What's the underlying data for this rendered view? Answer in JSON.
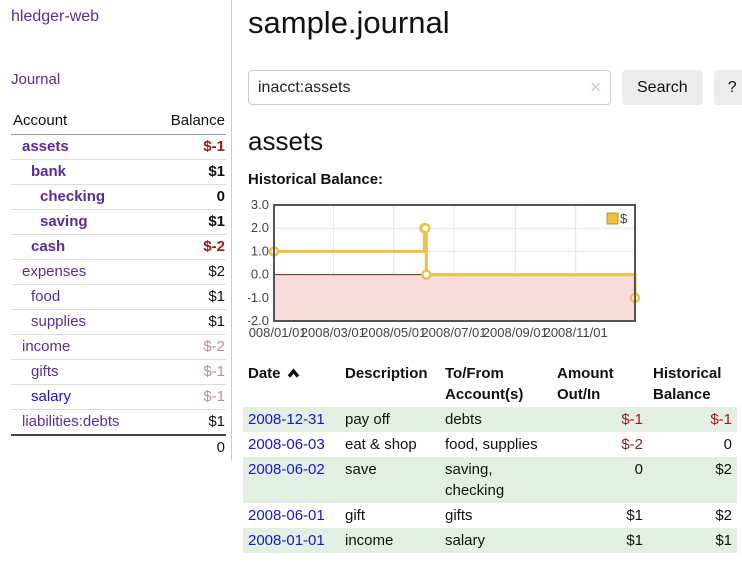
{
  "app": {
    "brand": "hledger-web",
    "nav_journal": "Journal"
  },
  "theme": {
    "link_visited": "#5a2ca0",
    "link_unvisited": "#1515dd",
    "negative": "#a01818",
    "negative_faded": "#bc8f8f",
    "row_green": "#e2efe2",
    "button_bg": "#ececec"
  },
  "sidebar": {
    "columns": {
      "account": "Account",
      "balance": "Balance"
    },
    "accounts": [
      {
        "name": "assets",
        "depth": 0,
        "balance": "$-1",
        "bold": true,
        "balance_tone": "negative"
      },
      {
        "name": "bank",
        "depth": 1,
        "balance": "$1",
        "bold": true,
        "balance_tone": "normal"
      },
      {
        "name": "checking",
        "depth": 2,
        "balance": "0",
        "bold": true,
        "balance_tone": "normal"
      },
      {
        "name": "saving",
        "depth": 2,
        "balance": "$1",
        "bold": true,
        "balance_tone": "normal"
      },
      {
        "name": "cash",
        "depth": 1,
        "balance": "$-2",
        "bold": true,
        "balance_tone": "negative"
      },
      {
        "name": "expenses",
        "depth": 0,
        "balance": "$2",
        "bold": false,
        "balance_tone": "normal"
      },
      {
        "name": "food",
        "depth": 1,
        "balance": "$1",
        "bold": false,
        "balance_tone": "normal"
      },
      {
        "name": "supplies",
        "depth": 1,
        "balance": "$1",
        "bold": false,
        "balance_tone": "normal"
      },
      {
        "name": "income",
        "depth": 0,
        "balance": "$-2",
        "bold": false,
        "balance_tone": "negative-faded"
      },
      {
        "name": "gifts",
        "depth": 1,
        "balance": "$-1",
        "bold": false,
        "balance_tone": "negative-faded"
      },
      {
        "name": "salary",
        "depth": 1,
        "balance": "$-1",
        "bold": false,
        "balance_tone": "negative-faded",
        "link_tone": "unvisited"
      },
      {
        "name": "liabilities:debts",
        "depth": 0,
        "balance": "$1",
        "bold": false,
        "balance_tone": "normal"
      }
    ],
    "total": "0"
  },
  "header": {
    "title": "sample.journal"
  },
  "search": {
    "value": "inacct:assets",
    "clear_label": "✕",
    "button": "Search",
    "help": "?"
  },
  "account_page": {
    "heading": "assets",
    "chart_label": "Historical Balance:"
  },
  "chart_data": {
    "type": "line",
    "title": "Historical Balance",
    "legend": {
      "position": "top-right",
      "entries": [
        "$"
      ]
    },
    "xlim": [
      "2008-01-01",
      "2008-12-31"
    ],
    "ylim": [
      -2,
      3
    ],
    "y_ticks": [
      -2,
      -1,
      0,
      1,
      2,
      3
    ],
    "x_ticks": [
      {
        "date": "2008-01-01",
        "label": "2008/01/01"
      },
      {
        "date": "2008-03-01",
        "label": "2008/03/01"
      },
      {
        "date": "2008-05-01",
        "label": "2008/05/01"
      },
      {
        "date": "2008-07-01",
        "label": "2008/07/01"
      },
      {
        "date": "2008-09-01",
        "label": "2008/09/01"
      },
      {
        "date": "2008-11-01",
        "label": "2008/11/01"
      }
    ],
    "series": [
      {
        "name": "$",
        "color": "#edc240",
        "step": true,
        "points": [
          {
            "date": "2008-01-01",
            "value": 1
          },
          {
            "date": "2008-06-01",
            "value": 2
          },
          {
            "date": "2008-06-02",
            "value": 2
          },
          {
            "date": "2008-06-03",
            "value": 0
          },
          {
            "date": "2008-12-31",
            "value": -1
          }
        ]
      }
    ],
    "grid_on": true,
    "grid_color": "#e6e6e6",
    "border_color": "#545454",
    "zero_line_color": "#8b1a1a",
    "below_zero_fill": "#f9dcdc",
    "tick_label_color": "#444444"
  },
  "register": {
    "headers": {
      "date": "Date",
      "description": "Description",
      "tofrom_line1": "To/From",
      "tofrom_line2": "Account(s)",
      "amount_line1": "Amount",
      "amount_line2": "Out/In",
      "historical_line1": "Historical",
      "historical_line2": "Balance"
    },
    "rows": [
      {
        "date": "2008-12-31",
        "description": "pay off",
        "accounts": "debts",
        "amount": "$-1",
        "amount_negative": true,
        "balance": "$-1",
        "balance_negative": true
      },
      {
        "date": "2008-06-03",
        "description": "eat & shop",
        "accounts": "food, supplies",
        "amount": "$-2",
        "amount_negative": true,
        "balance": "0",
        "balance_negative": false
      },
      {
        "date": "2008-06-02",
        "description": "save",
        "accounts": "saving, checking",
        "amount": "0",
        "amount_negative": false,
        "balance": "$2",
        "balance_negative": false
      },
      {
        "date": "2008-06-01",
        "description": "gift",
        "accounts": "gifts",
        "amount": "$1",
        "amount_negative": false,
        "balance": "$2",
        "balance_negative": false
      },
      {
        "date": "2008-01-01",
        "description": "income",
        "accounts": "salary",
        "amount": "$1",
        "amount_negative": false,
        "balance": "$1",
        "balance_negative": false
      }
    ]
  }
}
